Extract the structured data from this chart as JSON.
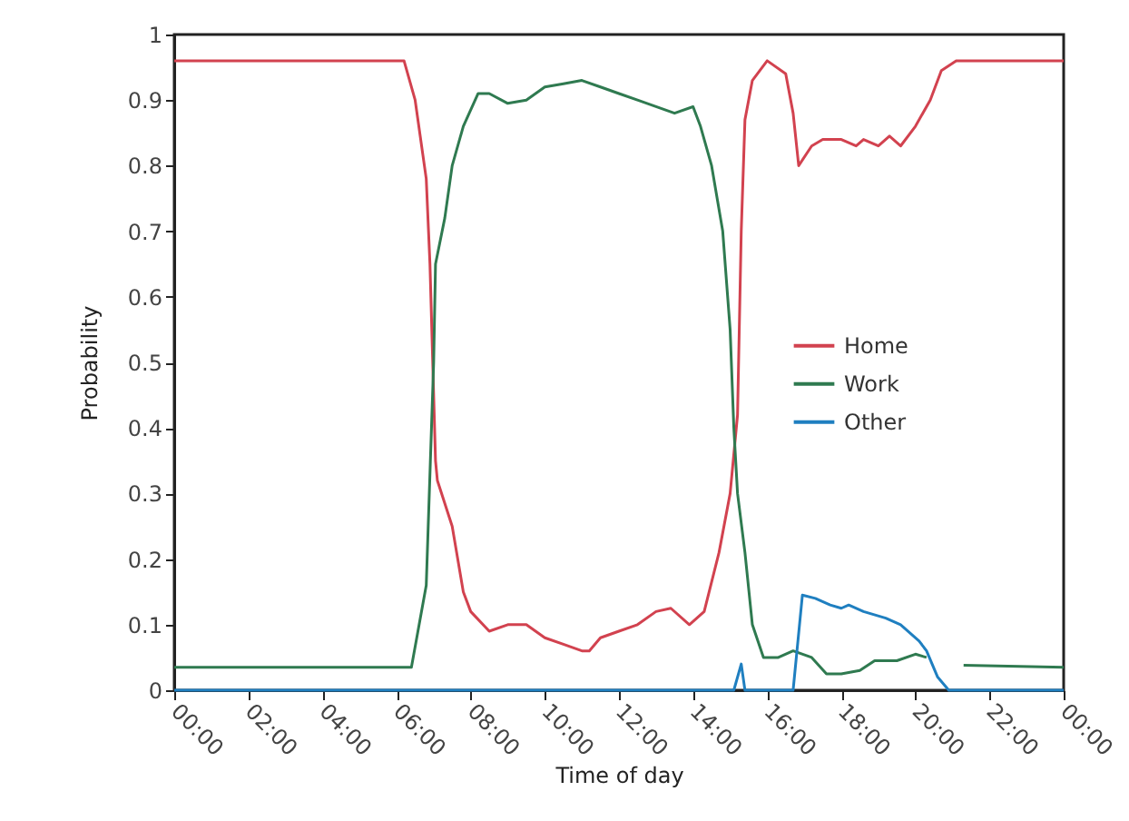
{
  "chart_data": {
    "type": "line",
    "xlabel": "Time of day",
    "ylabel": "Probability",
    "xlim": [
      0,
      24
    ],
    "ylim": [
      0,
      1
    ],
    "xticks": [
      {
        "value": 0,
        "label": "00:00"
      },
      {
        "value": 2,
        "label": "02:00"
      },
      {
        "value": 4,
        "label": "04:00"
      },
      {
        "value": 6,
        "label": "06:00"
      },
      {
        "value": 8,
        "label": "08:00"
      },
      {
        "value": 10,
        "label": "10:00"
      },
      {
        "value": 12,
        "label": "12:00"
      },
      {
        "value": 14,
        "label": "14:00"
      },
      {
        "value": 16,
        "label": "16:00"
      },
      {
        "value": 18,
        "label": "18:00"
      },
      {
        "value": 20,
        "label": "20:00"
      },
      {
        "value": 22,
        "label": "22:00"
      },
      {
        "value": 24,
        "label": "00:00"
      }
    ],
    "yticks": [
      0,
      0.1,
      0.2,
      0.3,
      0.4,
      0.5,
      0.6,
      0.7,
      0.8,
      0.9,
      1
    ],
    "grid": false,
    "legend": "right",
    "marker": "none",
    "line_style": "solid",
    "series": [
      {
        "name": "Home",
        "color": "#d2424f",
        "x": [
          0,
          6.2,
          6.5,
          6.8,
          6.9,
          7.05,
          7.1,
          7.5,
          7.8,
          8,
          8.5,
          9,
          9.5,
          10,
          10.5,
          11,
          11.2,
          11.5,
          12,
          12.5,
          13,
          13.4,
          13.9,
          14.3,
          14.7,
          15,
          15.2,
          15.3,
          15.4,
          15.6,
          16,
          16.5,
          16.7,
          16.85,
          17.2,
          17.5,
          18,
          18.4,
          18.6,
          19,
          19.3,
          19.6,
          20,
          20.4,
          20.7,
          21.1,
          24
        ],
        "values": [
          0.96,
          0.96,
          0.9,
          0.78,
          0.65,
          0.35,
          0.32,
          0.25,
          0.15,
          0.12,
          0.09,
          0.1,
          0.1,
          0.08,
          0.07,
          0.06,
          0.06,
          0.08,
          0.09,
          0.1,
          0.12,
          0.125,
          0.1,
          0.12,
          0.21,
          0.3,
          0.42,
          0.7,
          0.87,
          0.93,
          0.96,
          0.94,
          0.88,
          0.8,
          0.83,
          0.84,
          0.84,
          0.83,
          0.84,
          0.83,
          0.845,
          0.83,
          0.86,
          0.9,
          0.945,
          0.96,
          0.96
        ]
      },
      {
        "name": "Work",
        "color": "#2f7a50",
        "x": [
          0,
          6.4,
          6.8,
          7,
          7.05,
          7.3,
          7.5,
          7.8,
          8.2,
          8.5,
          9,
          9.5,
          10,
          10.5,
          11,
          11.5,
          12,
          12.5,
          13,
          13.5,
          14,
          14.2,
          14.5,
          14.8,
          15,
          15.1,
          15.2,
          15.4,
          15.6,
          15.9,
          16.3,
          16.7,
          17.2,
          17.6,
          18,
          18.5,
          18.9,
          19.5,
          20,
          20.3,
          20.5,
          21.3,
          24
        ],
        "values": [
          0.035,
          0.035,
          0.16,
          0.5,
          0.65,
          0.72,
          0.8,
          0.86,
          0.91,
          0.91,
          0.895,
          0.9,
          0.92,
          0.925,
          0.93,
          0.92,
          0.91,
          0.9,
          0.89,
          0.88,
          0.89,
          0.86,
          0.8,
          0.7,
          0.55,
          0.4,
          0.3,
          0.21,
          0.1,
          0.05,
          0.05,
          0.06,
          0.05,
          0.025,
          0.025,
          0.03,
          0.045,
          0.045,
          0.055,
          0.05,
          null,
          0.038,
          0.035
        ]
      },
      {
        "name": "Other",
        "color": "#1f7fc0",
        "x": [
          0,
          15.1,
          15.3,
          15.4,
          16.7,
          16.95,
          17.3,
          17.7,
          18,
          18.2,
          18.6,
          19.2,
          19.6,
          20.1,
          20.3,
          20.6,
          20.9,
          24
        ],
        "values": [
          0,
          0,
          0.04,
          0,
          0,
          0.145,
          0.14,
          0.13,
          0.125,
          0.13,
          0.12,
          0.11,
          0.1,
          0.075,
          0.06,
          0.02,
          0,
          0
        ]
      }
    ]
  }
}
